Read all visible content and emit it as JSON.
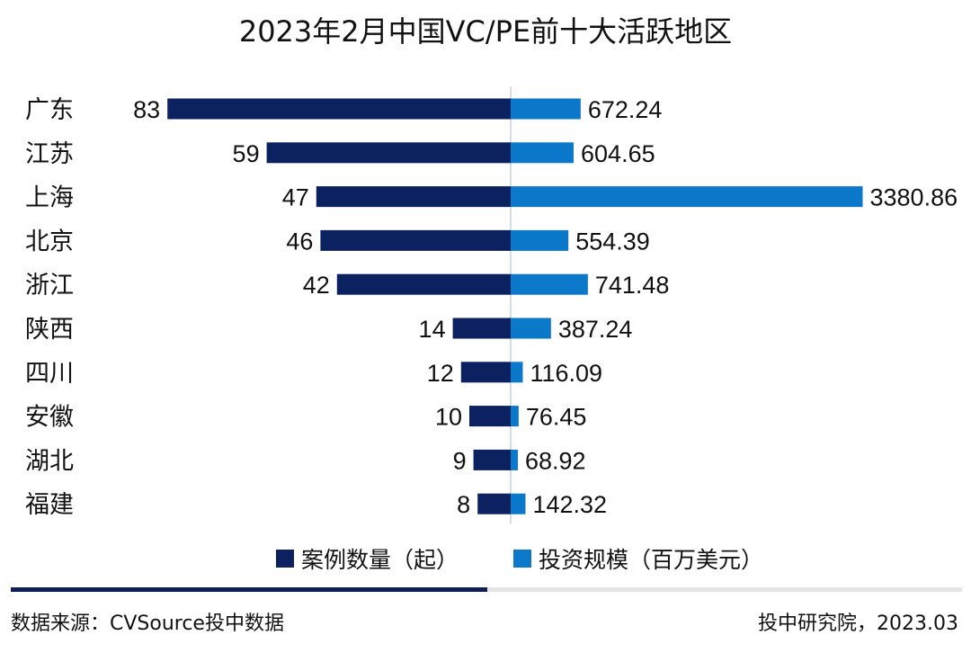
{
  "chart_data": {
    "type": "bar",
    "title": "2023年2月中国VC/PE前十大活跃地区",
    "categories": [
      "广东",
      "江苏",
      "上海",
      "北京",
      "浙江",
      "陕西",
      "四川",
      "安徽",
      "湖北",
      "福建"
    ],
    "series": [
      {
        "name": "案例数量（起）",
        "color": "#0b2160",
        "values": [
          83,
          59,
          47,
          46,
          42,
          14,
          12,
          10,
          9,
          8
        ]
      },
      {
        "name": "投资规模（百万美元）",
        "color": "#0b78c9",
        "values": [
          672.24,
          604.65,
          3380.86,
          554.39,
          741.48,
          387.24,
          116.09,
          76.45,
          68.92,
          142.32
        ]
      }
    ],
    "value_labels": {
      "series1": [
        "83",
        "59",
        "47",
        "46",
        "42",
        "14",
        "12",
        "10",
        "9",
        "8"
      ],
      "series2": [
        "672.24",
        "604.65",
        "3380.86",
        "554.39",
        "741.48",
        "387.24",
        "116.09",
        "76.45",
        "68.92",
        "142.32"
      ]
    },
    "layout": "diverging horizontal bars: series1 extends left, series2 extends right",
    "legend_placement": "bottom-center",
    "grid": false
  },
  "footer": {
    "source": "数据来源：CVSource投中数据",
    "credit": "投中研究院，2023.03"
  },
  "colors": {
    "footer_dark": "#0e1f57",
    "footer_light": "#e4e4e4",
    "axis": "#c8d0dc"
  }
}
